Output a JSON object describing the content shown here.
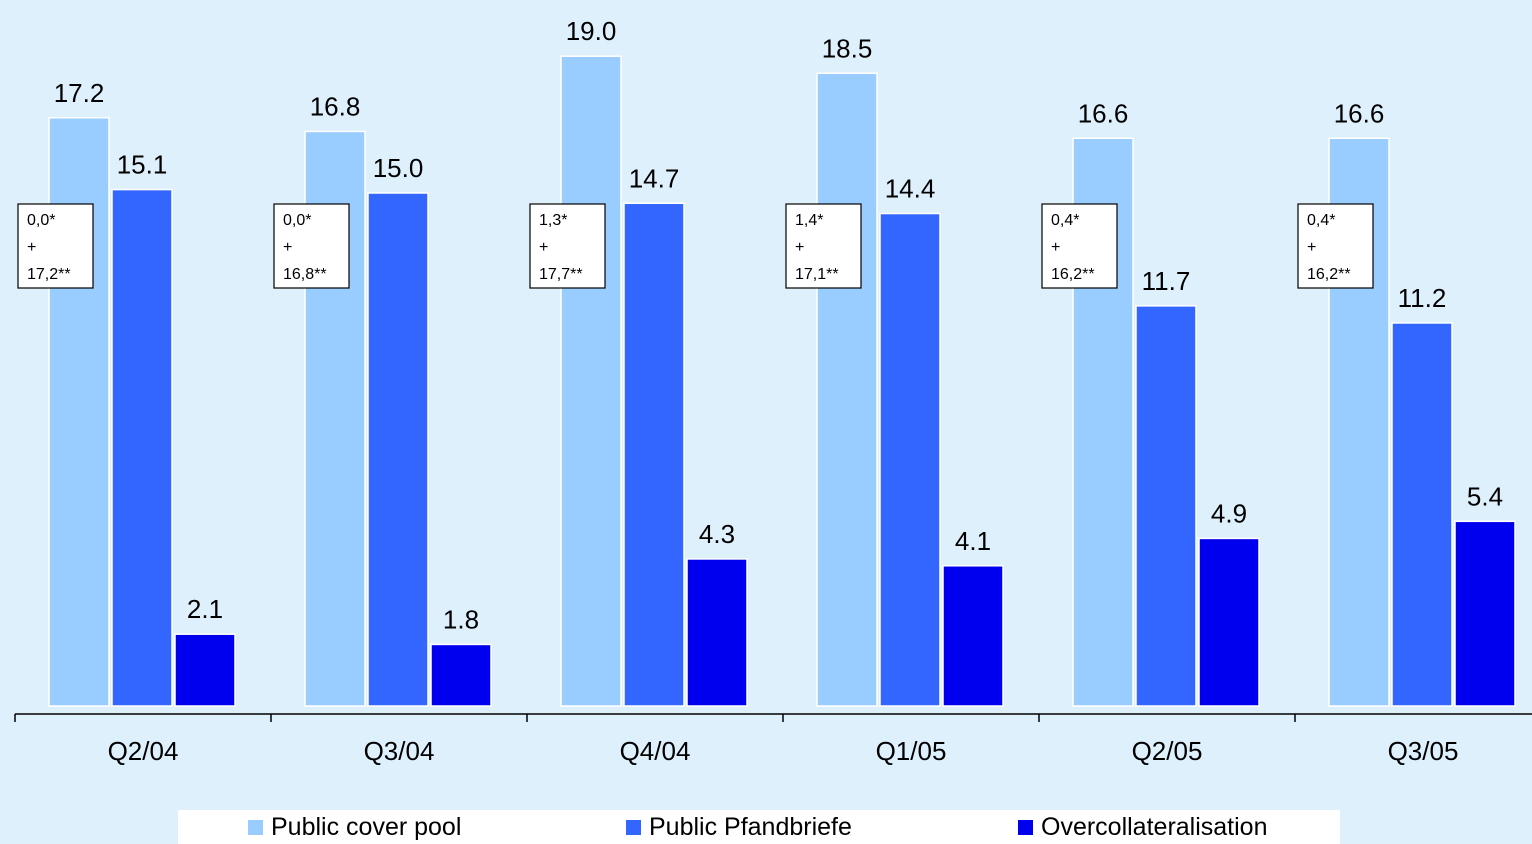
{
  "chart_data": {
    "type": "bar",
    "categories": [
      "Q2/04",
      "Q3/04",
      "Q4/04",
      "Q1/05",
      "Q2/05",
      "Q3/05"
    ],
    "series": [
      {
        "name": "Public cover pool",
        "color": "#99ccff",
        "values": [
          17.2,
          16.8,
          19.0,
          18.5,
          16.6,
          16.6
        ],
        "labels": [
          "17.2",
          "16.8",
          "19.0",
          "18.5",
          "16.6",
          "16.6"
        ]
      },
      {
        "name": "Public Pfandbriefe",
        "color": "#3366ff",
        "values": [
          15.1,
          15.0,
          14.7,
          14.4,
          11.7,
          11.2
        ],
        "labels": [
          "15.1",
          "15.0",
          "14.7",
          "14.4",
          "11.7",
          "11.2"
        ]
      },
      {
        "name": "Overcollateralisation",
        "color": "#0000ee",
        "values": [
          2.1,
          1.8,
          4.3,
          4.1,
          4.9,
          5.4
        ],
        "labels": [
          "2.1",
          "1.8",
          "4.3",
          "4.1",
          "4.9",
          "5.4"
        ]
      }
    ],
    "annotations": [
      {
        "lines": [
          "0,0*",
          "+",
          "17,2**"
        ]
      },
      {
        "lines": [
          "0,0*",
          "+",
          "16,8**"
        ]
      },
      {
        "lines": [
          "1,3*",
          "+",
          "17,7**"
        ]
      },
      {
        "lines": [
          "1,4*",
          "+",
          "17,1**"
        ]
      },
      {
        "lines": [
          "0,4*",
          "+",
          "16,2**"
        ]
      },
      {
        "lines": [
          "0,4*",
          "+",
          "16,2**"
        ]
      }
    ],
    "ylim": [
      0,
      20
    ],
    "grid": false,
    "legend_position": "bottom"
  },
  "legend": {
    "items": [
      {
        "label": "Public cover pool",
        "color": "#99ccff"
      },
      {
        "label": "Public Pfandbriefe",
        "color": "#3366ff"
      },
      {
        "label": "Overcollateralisation",
        "color": "#0000ee"
      }
    ]
  }
}
